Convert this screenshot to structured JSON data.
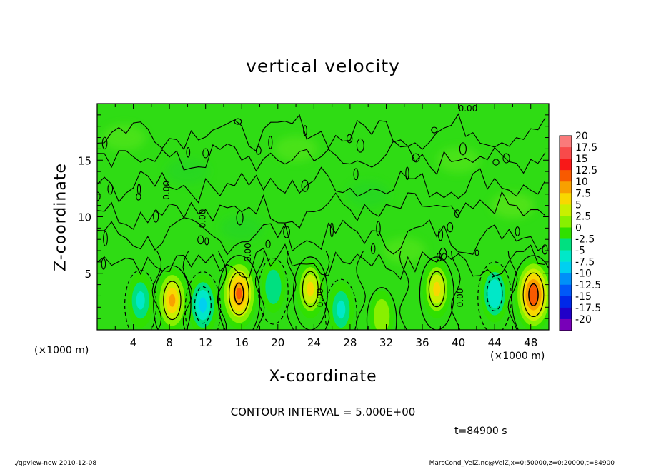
{
  "chart_data": {
    "type": "heatmap",
    "title": "vertical velocity",
    "xlabel": "X-coordinate",
    "ylabel": "Z-coordinate",
    "x_unit": "(×1000 m)",
    "y_unit": "(×1000 m)",
    "xlim": [
      0,
      50
    ],
    "ylim": [
      0,
      20
    ],
    "x_ticks": [
      4,
      8,
      12,
      16,
      20,
      24,
      28,
      32,
      36,
      40,
      44,
      48
    ],
    "y_ticks": [
      5,
      10,
      15
    ],
    "contour_interval_label": "CONTOUR INTERVAL = 5.000E+00",
    "contour_labels": [
      "0.00",
      "0.00",
      "0.00",
      "0.00",
      "0.00",
      "0.00"
    ],
    "colorbar": {
      "levels": [
        "20",
        "17.5",
        "15",
        "12.5",
        "10",
        "7.5",
        "5",
        "2.5",
        "0",
        "-2.5",
        "-5",
        "-7.5",
        "-10",
        "-12.5",
        "-15",
        "-17.5",
        "-20"
      ],
      "colors": [
        "#fa7a7a",
        "#f84a4a",
        "#f81818",
        "#f85a00",
        "#f8a000",
        "#f8d800",
        "#c8f000",
        "#88f000",
        "#30e000",
        "#00e080",
        "#00e8c8",
        "#00d0f0",
        "#0090f8",
        "#0058f8",
        "#0028e8",
        "#2000c8",
        "#7800b8"
      ]
    },
    "features": [
      {
        "x": 4.8,
        "z": 2.6,
        "w": -4.5
      },
      {
        "x": 8.3,
        "z": 2.6,
        "w": 9.0
      },
      {
        "x": 11.7,
        "z": 2.2,
        "w": -7.5
      },
      {
        "x": 15.7,
        "z": 3.2,
        "w": 12.5
      },
      {
        "x": 19.5,
        "z": 3.8,
        "w": -3.0
      },
      {
        "x": 23.6,
        "z": 3.6,
        "w": 6.5
      },
      {
        "x": 27.0,
        "z": 1.8,
        "w": -4.5
      },
      {
        "x": 31.5,
        "z": 1.2,
        "w": 3.0
      },
      {
        "x": 37.6,
        "z": 3.6,
        "w": 6.5
      },
      {
        "x": 44.0,
        "z": 3.2,
        "w": -6.0
      },
      {
        "x": 48.3,
        "z": 3.1,
        "w": 13.5
      }
    ]
  },
  "footer": {
    "time_label": "t=84900 s",
    "left": "./gpview-new  2010-12-08",
    "right": "MarsCond_VelZ.nc@VelZ,x=0:50000,z=0:20000,t=84900"
  }
}
